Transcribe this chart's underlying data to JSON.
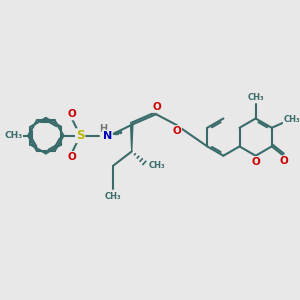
{
  "bg_color": "#e8e8e8",
  "bond_color": "#3a6b6b",
  "atom_colors": {
    "O": "#cc0000",
    "N": "#0000bb",
    "S": "#bbbb00",
    "H": "#777777",
    "C": "#3a6b6b"
  },
  "lw": 1.5,
  "figsize": [
    3.0,
    3.0
  ],
  "dpi": 100,
  "xlim": [
    0,
    10
  ],
  "ylim": [
    0,
    10
  ]
}
